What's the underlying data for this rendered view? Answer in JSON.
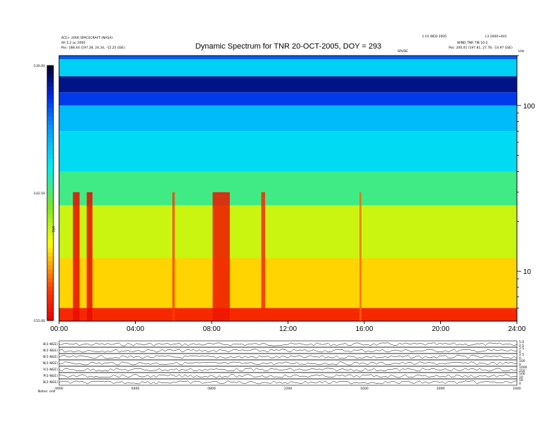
{
  "header": {
    "left_line1": "ACE+ 2000 SPACECRAFT  (NASA)",
    "left_line2": "Alt 5.2 ac 2000",
    "left_line3": "Pos:  188.44 (197.28, 24.34, -15.25 GSE)",
    "right_line1": "1.10 WED 2005",
    "right_line2": "L3 2000+401",
    "right_line3": "WIND TNR  TIB 10-2",
    "right_line4": "Pos:  200.01 (197.81, 27.78, -14.97 GSE)",
    "axis_tag": "SRVDE",
    "right_tag": "kHz"
  },
  "chart_data": {
    "type": "heatmap",
    "title": "Dynamic Spectrum for TNR 20-OCT-2005, DOY = 293",
    "xlabel": "",
    "ylabel_right": "kHz",
    "colorbar_label": "TNR",
    "x_ticks": [
      "00:00",
      "04:00",
      "08:00",
      "12:00",
      "16:00",
      "20:00",
      "24:00"
    ],
    "y_ticks_right": [
      "100",
      "10"
    ],
    "colorbar_ticks": [
      "-130.00",
      "-142.50",
      "-155.00"
    ],
    "colorbar_range": [
      -155,
      -130
    ],
    "bands": [
      {
        "from_khz": 200,
        "to_khz": 190,
        "level": -134.5
      },
      {
        "from_khz": 190,
        "to_khz": 150,
        "level": -138.5
      },
      {
        "from_khz": 150,
        "to_khz": 120,
        "level": -131.5
      },
      {
        "from_khz": 120,
        "to_khz": 100,
        "level": -133.5
      },
      {
        "from_khz": 100,
        "to_khz": 70,
        "level": -137.5
      },
      {
        "from_khz": 70,
        "to_khz": 40,
        "level": -139.0
      },
      {
        "from_khz": 40,
        "to_khz": 25,
        "level": -142.0
      },
      {
        "from_khz": 25,
        "to_khz": 12,
        "level": -146.0
      },
      {
        "from_khz": 12,
        "to_khz": 6,
        "level": -148.5
      },
      {
        "from_khz": 6,
        "to_khz": 5,
        "level": -153.0
      }
    ],
    "bursts": [
      {
        "hour": 0.9,
        "width": 0.35,
        "level": -154.5
      },
      {
        "hour": 1.6,
        "width": 0.3,
        "level": -154.5
      },
      {
        "hour": 6.0,
        "width": 0.12,
        "level": -152.0
      },
      {
        "hour": 8.5,
        "width": 0.9,
        "level": -154.0
      },
      {
        "hour": 10.7,
        "width": 0.2,
        "level": -153.0
      },
      {
        "hour": 15.8,
        "width": 0.1,
        "level": -151.0
      }
    ],
    "panels": [
      {
        "label": "B(1-NGE)",
        "ticks": [
          "5.0",
          "2.5"
        ]
      },
      {
        "label": "B(1-NGE)",
        "ticks": [
          "2.5",
          "0"
        ]
      },
      {
        "label": "B(1-NGE)",
        "ticks": [
          "2.5",
          "0"
        ]
      },
      {
        "label": "N(1-NGE)",
        "ticks": [
          "100",
          "0"
        ]
      },
      {
        "label": "V(1-NGE)",
        "ticks": [
          "1000",
          "250"
        ]
      },
      {
        "label": "P(1-NGE)",
        "ticks": [
          "100",
          "10"
        ]
      },
      {
        "label": "B(1-NGE)",
        "ticks": [
          "50",
          "0"
        ]
      }
    ],
    "panel_x_ticks": [
      "0000",
      "0400",
      "0800",
      "1200",
      "1600",
      "2000",
      "2400"
    ],
    "footer": "Notes:  onlt"
  }
}
